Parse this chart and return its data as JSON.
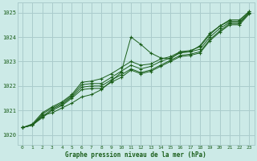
{
  "title": "Graphe pression niveau de la mer (hPa)",
  "background_color": "#cceae7",
  "grid_color": "#aacccc",
  "line_color": "#1a5e1a",
  "marker_color": "#1a5e1a",
  "xlim": [
    -0.5,
    23.5
  ],
  "ylim": [
    1019.6,
    1025.4
  ],
  "yticks": [
    1020,
    1021,
    1022,
    1023,
    1024,
    1025
  ],
  "xticks": [
    0,
    1,
    2,
    3,
    4,
    5,
    6,
    7,
    8,
    9,
    10,
    11,
    12,
    13,
    14,
    15,
    16,
    17,
    18,
    19,
    20,
    21,
    22,
    23
  ],
  "series": [
    [
      1020.3,
      1020.4,
      1020.8,
      1020.9,
      1021.1,
      1021.3,
      1021.55,
      1021.65,
      1021.85,
      1022.2,
      1022.55,
      1024.0,
      1023.7,
      1023.35,
      1023.15,
      1023.1,
      1023.4,
      1023.4,
      1023.65,
      1024.15,
      1024.45,
      1024.65,
      1024.65,
      1025.05
    ],
    [
      1020.3,
      1020.4,
      1020.7,
      1021.0,
      1021.2,
      1021.5,
      1021.85,
      1021.9,
      1021.9,
      1022.15,
      1022.35,
      1022.65,
      1022.5,
      1022.6,
      1022.8,
      1023.0,
      1023.2,
      1023.25,
      1023.35,
      1023.85,
      1024.2,
      1024.5,
      1024.5,
      1024.95
    ],
    [
      1020.3,
      1020.4,
      1020.75,
      1021.05,
      1021.25,
      1021.55,
      1021.95,
      1022.0,
      1022.0,
      1022.25,
      1022.45,
      1022.7,
      1022.55,
      1022.65,
      1022.85,
      1023.05,
      1023.25,
      1023.3,
      1023.4,
      1023.9,
      1024.25,
      1024.55,
      1024.55,
      1025.0
    ],
    [
      1020.3,
      1020.4,
      1020.85,
      1021.1,
      1021.3,
      1021.6,
      1022.05,
      1022.1,
      1022.1,
      1022.35,
      1022.6,
      1022.85,
      1022.7,
      1022.8,
      1023.0,
      1023.15,
      1023.35,
      1023.4,
      1023.5,
      1024.0,
      1024.35,
      1024.6,
      1024.6,
      1025.0
    ],
    [
      1020.3,
      1020.45,
      1020.9,
      1021.15,
      1021.35,
      1021.65,
      1022.15,
      1022.2,
      1022.3,
      1022.5,
      1022.75,
      1023.0,
      1022.85,
      1022.9,
      1023.1,
      1023.2,
      1023.4,
      1023.45,
      1023.6,
      1024.1,
      1024.45,
      1024.7,
      1024.7,
      1025.05
    ]
  ]
}
